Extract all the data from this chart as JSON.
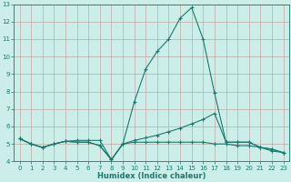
{
  "x": [
    0,
    1,
    2,
    3,
    4,
    5,
    6,
    7,
    8,
    9,
    10,
    11,
    12,
    13,
    14,
    15,
    16,
    17,
    18,
    19,
    20,
    21,
    22,
    23
  ],
  "line1": [
    5.3,
    5.0,
    4.8,
    5.0,
    5.15,
    5.2,
    5.2,
    5.2,
    4.1,
    5.0,
    7.4,
    9.3,
    10.3,
    11.0,
    12.2,
    12.8,
    11.0,
    7.9,
    5.1,
    5.1,
    5.1,
    4.8,
    4.6,
    4.5
  ],
  "line2": [
    5.3,
    5.0,
    4.8,
    5.0,
    5.15,
    5.1,
    5.1,
    4.9,
    4.1,
    5.0,
    5.2,
    5.35,
    5.5,
    5.7,
    5.9,
    6.15,
    6.4,
    6.75,
    5.1,
    5.1,
    5.1,
    4.8,
    4.7,
    4.5
  ],
  "line3": [
    5.3,
    5.0,
    4.8,
    5.0,
    5.15,
    5.1,
    5.1,
    4.9,
    4.1,
    5.0,
    5.1,
    5.1,
    5.1,
    5.1,
    5.1,
    5.1,
    5.1,
    5.0,
    5.0,
    4.9,
    4.9,
    4.8,
    4.7,
    4.5
  ],
  "line_color": "#1a7a6e",
  "bg_color": "#cceee8",
  "grid_color": "#c4a8a8",
  "xlabel": "Humidex (Indice chaleur)",
  "ylim": [
    4,
    13
  ],
  "xlim": [
    -0.5,
    23.5
  ],
  "yticks": [
    4,
    5,
    6,
    7,
    8,
    9,
    10,
    11,
    12,
    13
  ],
  "xticks": [
    0,
    1,
    2,
    3,
    4,
    5,
    6,
    7,
    8,
    9,
    10,
    11,
    12,
    13,
    14,
    15,
    16,
    17,
    18,
    19,
    20,
    21,
    22,
    23
  ]
}
